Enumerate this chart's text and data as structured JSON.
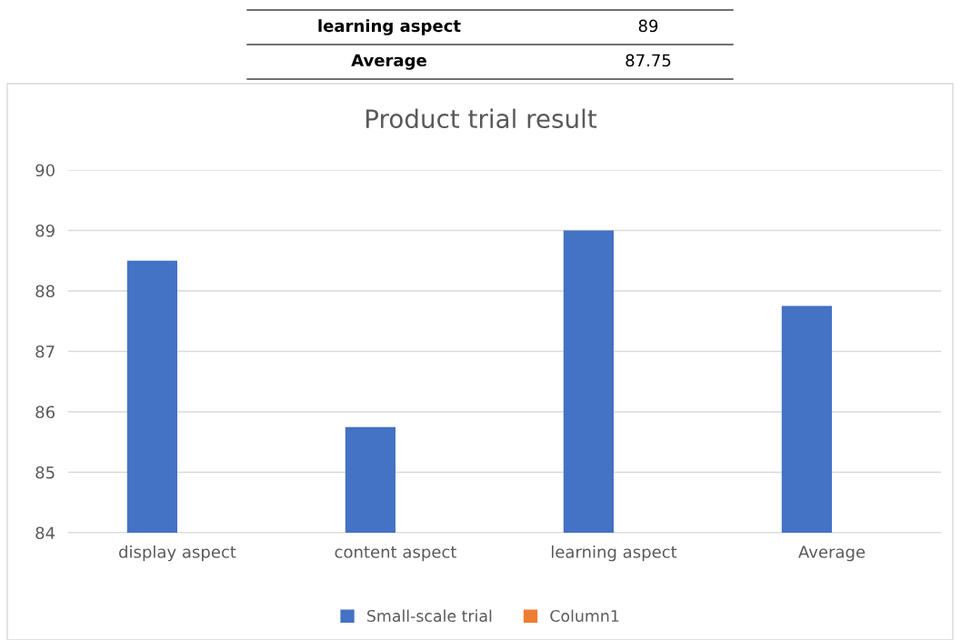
{
  "chart_data": {
    "type": "bar",
    "title": "Product trial result",
    "categories": [
      "display aspect",
      "content aspect",
      "learning aspect",
      "Average"
    ],
    "series": [
      {
        "name": "Small-scale trial",
        "color": "#4472c4",
        "values": [
          88.5,
          85.75,
          89,
          87.75
        ]
      },
      {
        "name": "Column1",
        "color": "#ed7d31",
        "values": [
          null,
          null,
          null,
          null
        ]
      }
    ],
    "ylim": [
      84,
      90
    ],
    "yticks": [
      84,
      85,
      86,
      87,
      88,
      89,
      90
    ],
    "grid": "y",
    "legend": "bottom",
    "annotations": [
      "learning aspect",
      "89",
      "Average",
      "87.75"
    ]
  }
}
